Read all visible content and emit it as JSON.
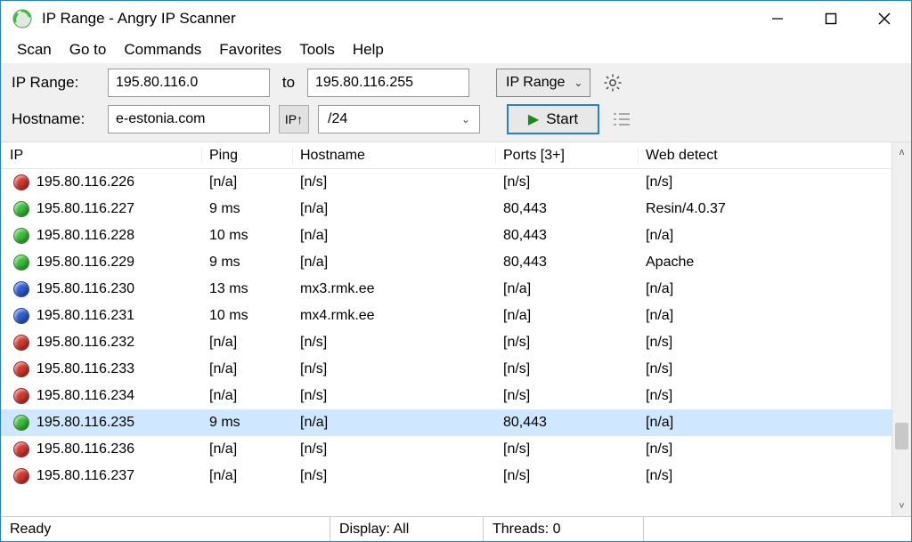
{
  "window": {
    "title": "IP Range - Angry IP Scanner"
  },
  "menu": {
    "items": [
      "Scan",
      "Go to",
      "Commands",
      "Favorites",
      "Tools",
      "Help"
    ]
  },
  "toolbar": {
    "ip_range_label": "IP Range:",
    "ip_start": "195.80.116.0",
    "to_label": "to",
    "ip_end": "195.80.116.255",
    "feeder_label": "IP Range",
    "hostname_label": "Hostname:",
    "hostname_value": "e-estonia.com",
    "ip_up_label": "IP↑",
    "netmask_value": "/24",
    "start_label": "Start"
  },
  "columns": {
    "ip": "IP",
    "ping": "Ping",
    "hostname": "Hostname",
    "ports": "Ports [3+]",
    "web": "Web detect"
  },
  "status_colors": {
    "red": "#d33a2f",
    "green": "#3bbf3b",
    "blue": "#2f5fd3"
  },
  "rows": [
    {
      "status": "red",
      "ip": "195.80.116.226",
      "ping": "[n/a]",
      "hostname": "[n/s]",
      "ports": "[n/s]",
      "web": "[n/s]"
    },
    {
      "status": "green",
      "ip": "195.80.116.227",
      "ping": "9 ms",
      "hostname": "[n/a]",
      "ports": "80,443",
      "web": "Resin/4.0.37"
    },
    {
      "status": "green",
      "ip": "195.80.116.228",
      "ping": "10 ms",
      "hostname": "[n/a]",
      "ports": "80,443",
      "web": "[n/a]"
    },
    {
      "status": "green",
      "ip": "195.80.116.229",
      "ping": "9 ms",
      "hostname": "[n/a]",
      "ports": "80,443",
      "web": "Apache"
    },
    {
      "status": "blue",
      "ip": "195.80.116.230",
      "ping": "13 ms",
      "hostname": "mx3.rmk.ee",
      "ports": "[n/a]",
      "web": "[n/a]"
    },
    {
      "status": "blue",
      "ip": "195.80.116.231",
      "ping": "10 ms",
      "hostname": "mx4.rmk.ee",
      "ports": "[n/a]",
      "web": "[n/a]"
    },
    {
      "status": "red",
      "ip": "195.80.116.232",
      "ping": "[n/a]",
      "hostname": "[n/s]",
      "ports": "[n/s]",
      "web": "[n/s]"
    },
    {
      "status": "red",
      "ip": "195.80.116.233",
      "ping": "[n/a]",
      "hostname": "[n/s]",
      "ports": "[n/s]",
      "web": "[n/s]"
    },
    {
      "status": "red",
      "ip": "195.80.116.234",
      "ping": "[n/a]",
      "hostname": "[n/s]",
      "ports": "[n/s]",
      "web": "[n/s]"
    },
    {
      "status": "green",
      "ip": "195.80.116.235",
      "ping": "9 ms",
      "hostname": "[n/a]",
      "ports": "80,443",
      "web": "[n/a]",
      "selected": true
    },
    {
      "status": "red",
      "ip": "195.80.116.236",
      "ping": "[n/a]",
      "hostname": "[n/s]",
      "ports": "[n/s]",
      "web": "[n/s]"
    },
    {
      "status": "red",
      "ip": "195.80.116.237",
      "ping": "[n/a]",
      "hostname": "[n/s]",
      "ports": "[n/s]",
      "web": "[n/s]"
    }
  ],
  "statusbar": {
    "ready": "Ready",
    "display": "Display: All",
    "threads": "Threads: 0"
  },
  "scrollbar": {
    "thumb_top_pct": 78
  }
}
